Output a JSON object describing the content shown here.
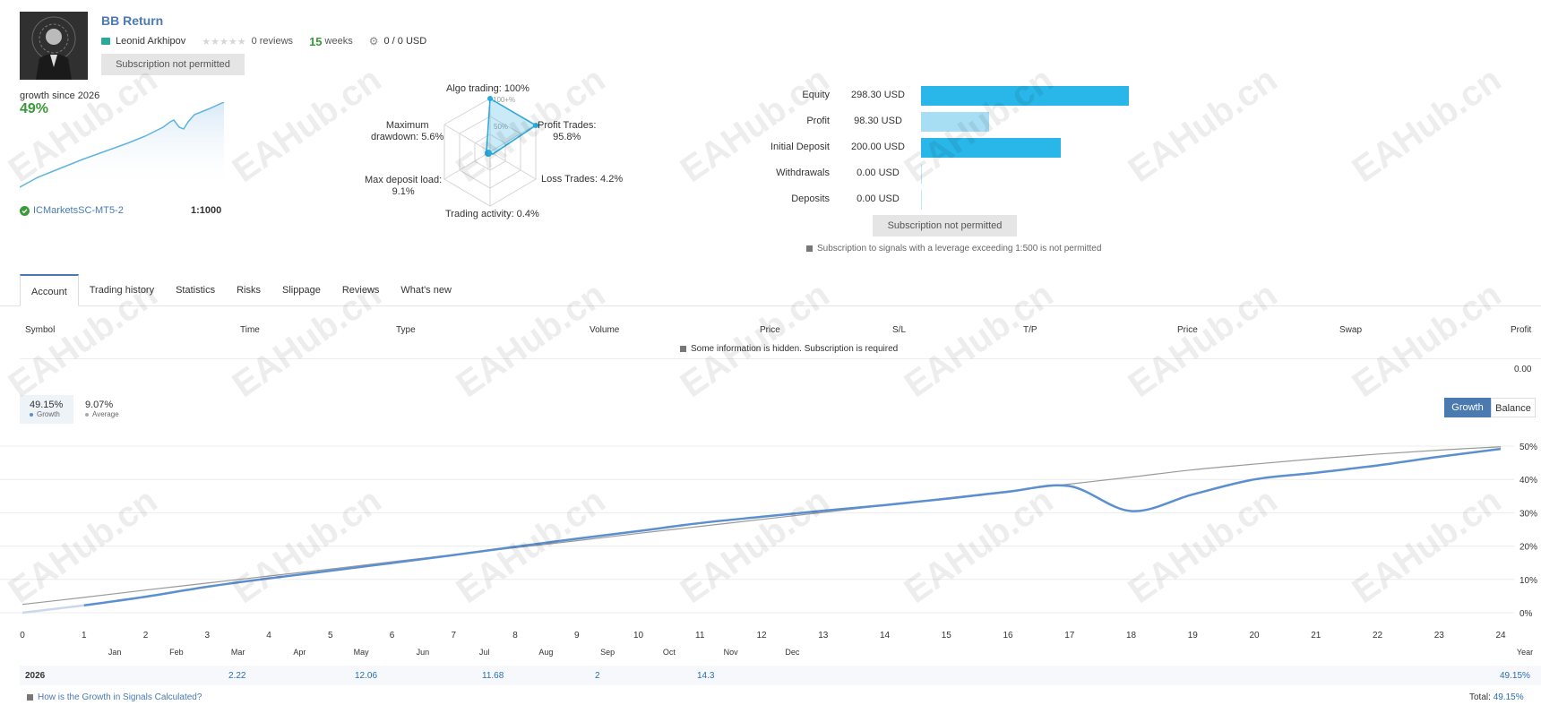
{
  "signal": {
    "title": "BB Return",
    "author": "Leonid Arkhipov",
    "reviews": "0 reviews",
    "weeks_num": "15",
    "weeks_label": "weeks",
    "subscribers": "0 / 0 USD",
    "subscribe_button": "Subscription not permitted"
  },
  "growth_summary": {
    "label": "growth since 2026",
    "value": "49%",
    "broker": "ICMarketsSC-MT5-2",
    "leverage": "1:1000"
  },
  "radar": {
    "algo": "Algo trading: 100%",
    "profit_trades": [
      "Profit Trades:",
      "95.8%"
    ],
    "loss_trades": "Loss Trades: 4.2%",
    "trading_activity": "Trading activity: 0.4%",
    "max_deposit_load": [
      "Max deposit load:",
      "9.1%"
    ],
    "max_drawdown": [
      "Maximum",
      "drawdown: 5.6%"
    ],
    "ring_100": "100+%",
    "ring_50": "50%"
  },
  "finance": [
    {
      "label": "Equity",
      "value": "298.30 USD",
      "amount": 298.3,
      "color": "#29b6e8"
    },
    {
      "label": "Profit",
      "value": "98.30 USD",
      "amount": 98.3,
      "color": "#a8def3"
    },
    {
      "label": "Initial Deposit",
      "value": "200.00 USD",
      "amount": 200.0,
      "color": "#29b6e8"
    },
    {
      "label": "Withdrawals",
      "value": "0.00 USD",
      "amount": 0,
      "color": "#29b6e8"
    },
    {
      "label": "Deposits",
      "value": "0.00 USD",
      "amount": 0,
      "color": "#29b6e8"
    }
  ],
  "finance_button": "Subscription not permitted",
  "leverage_note": "Subscription to signals with a leverage exceeding 1:500 is not permitted",
  "tabs": [
    "Account",
    "Trading history",
    "Statistics",
    "Risks",
    "Slippage",
    "Reviews",
    "What's new"
  ],
  "table_headers": [
    "Symbol",
    "Time",
    "Type",
    "Volume",
    "Price",
    "S/L",
    "T/P",
    "Price",
    "Swap",
    "Profit"
  ],
  "hidden_note": "Some information is hidden. Subscription is required",
  "profit_total": "0.00",
  "legend": {
    "growth_value": "49.15%",
    "growth_label": "Growth",
    "average_value": "9.07%",
    "average_label": "Average"
  },
  "toggle": {
    "growth": "Growth",
    "balance": "Balance"
  },
  "chart_data": {
    "type": "line",
    "x": [
      0,
      1,
      2,
      3,
      4,
      5,
      6,
      7,
      8,
      9,
      10,
      11,
      12,
      13,
      14,
      15,
      16,
      17,
      18,
      19,
      20,
      21,
      22,
      23,
      24
    ],
    "series": [
      {
        "name": "Growth",
        "color": "#5b8fd0",
        "values": [
          0,
          2.2,
          4.8,
          7.8,
          10.3,
          12.6,
          14.9,
          17.3,
          19.8,
          22.2,
          24.5,
          26.9,
          28.8,
          30.6,
          32.3,
          34.2,
          36.3,
          38.0,
          30.5,
          35.5,
          40.0,
          42.0,
          44.2,
          46.8,
          49.15
        ]
      },
      {
        "name": "Average",
        "color": "#999999",
        "values": [
          2.5,
          4.6,
          6.8,
          8.9,
          11.0,
          13.1,
          15.3,
          17.4,
          19.5,
          21.6,
          23.8,
          25.9,
          28.0,
          30.1,
          32.2,
          34.4,
          36.5,
          38.6,
          40.7,
          42.9,
          44.6,
          46.2,
          47.6,
          48.8,
          49.8
        ]
      }
    ],
    "xlim": [
      0,
      24
    ],
    "ylim": [
      0,
      50
    ],
    "yticks": [
      "0%",
      "10%",
      "20%",
      "30%",
      "40%",
      "50%"
    ],
    "yticks_values": [
      0,
      10,
      20,
      30,
      40,
      50
    ],
    "months": [
      "Jan",
      "Feb",
      "Mar",
      "Apr",
      "May",
      "Jun",
      "Jul",
      "Aug",
      "Sep",
      "Oct",
      "Nov",
      "Dec"
    ],
    "year_label": "Year",
    "grid": true
  },
  "year_row": {
    "year": "2026",
    "values": [
      {
        "month": "Jan",
        "value": "2.22"
      },
      {
        "month": "Feb",
        "value": "12.06"
      },
      {
        "month": "Mar",
        "value": "11.68"
      },
      {
        "month": "Apr",
        "value": "2"
      },
      {
        "month": "May",
        "value": "14.3"
      }
    ],
    "total": "49.15%"
  },
  "how_link": "How is the Growth in Signals Calculated?",
  "total_label": "Total:",
  "total_value": "49.15%",
  "watermark": "EAHub.cn"
}
